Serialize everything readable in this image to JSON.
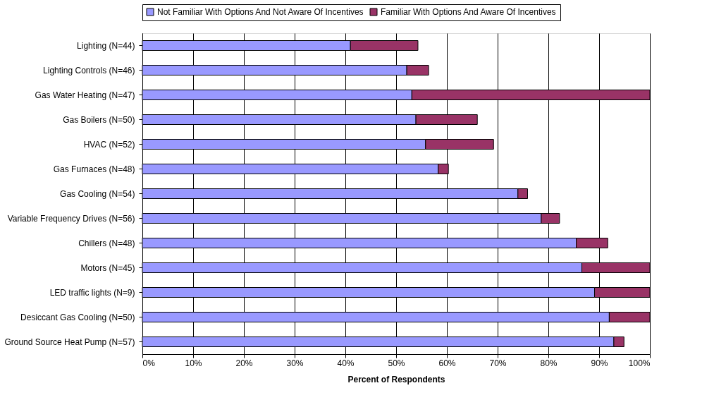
{
  "chart_data": {
    "type": "bar",
    "orientation": "horizontal",
    "stacked": true,
    "categories": [
      "Lighting (N=44)",
      "Lighting Controls (N=46)",
      "Gas Water Heating (N=47)",
      "Gas Boilers (N=50)",
      "HVAC (N=52)",
      "Gas Furnaces (N=48)",
      "Gas Cooling (N=54)",
      "Variable Frequency Drives (N=56)",
      "Chillers (N=48)",
      "Motors (N=45)",
      "LED traffic lights (N=9)",
      "Desiccant Gas Cooling (N=50)",
      "Ground Source Heat Pump (N=57)"
    ],
    "series": [
      {
        "name": "Not Familiar With Options And Not Aware Of Incentives",
        "color": "#9999ff",
        "values": [
          41.0,
          52.1,
          53.1,
          53.9,
          55.8,
          58.3,
          74.0,
          78.6,
          85.5,
          86.6,
          89.1,
          92.0,
          92.9
        ]
      },
      {
        "name": "Familiar With Options And Aware Of Incentives",
        "color": "#993366",
        "values": [
          13.3,
          4.3,
          46.9,
          12.1,
          13.4,
          2.0,
          1.9,
          3.6,
          6.2,
          13.4,
          10.9,
          8.0,
          2.0
        ]
      }
    ],
    "xlabel": "Percent of Respondents",
    "xlim": [
      0,
      100
    ],
    "xticks": [
      {
        "value": 0,
        "label": "0%"
      },
      {
        "value": 10,
        "label": "10%"
      },
      {
        "value": 20,
        "label": "20%"
      },
      {
        "value": 30,
        "label": "30%"
      },
      {
        "value": 40,
        "label": "40%"
      },
      {
        "value": 50,
        "label": "50%"
      },
      {
        "value": 60,
        "label": "60%"
      },
      {
        "value": 70,
        "label": "70%"
      },
      {
        "value": 80,
        "label": "80%"
      },
      {
        "value": 90,
        "label": "90%"
      },
      {
        "value": 100,
        "label": "100%"
      }
    ],
    "grid": "x",
    "legend": "top"
  }
}
